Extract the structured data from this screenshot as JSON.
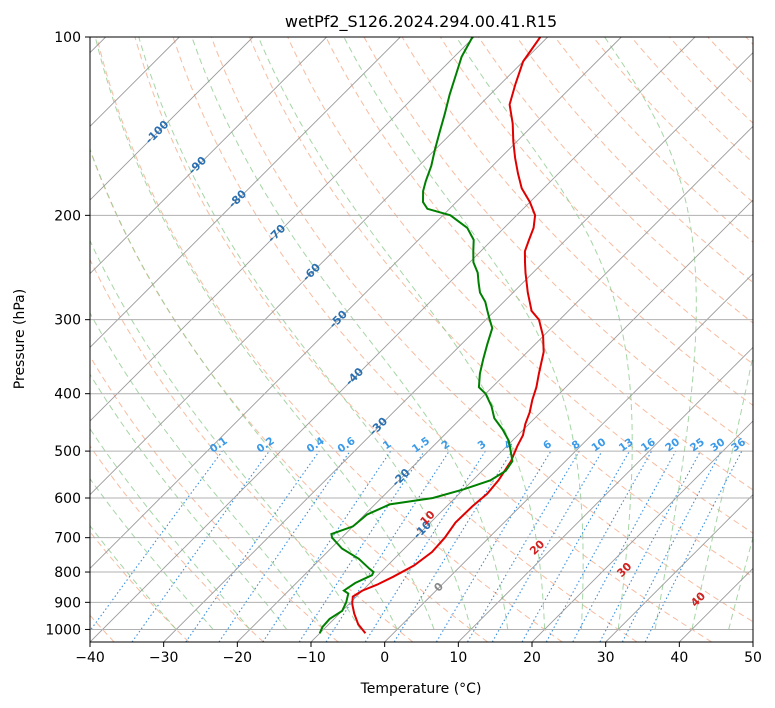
{
  "chart_data": {
    "type": "line",
    "subtype": "skew-T log-P diagram",
    "title": "wetPf2_S126.2024.294.00.41.R15",
    "xlabel": "Temperature (°C)",
    "ylabel": "Pressure (hPa)",
    "xlim": [
      -40,
      50
    ],
    "ylim": [
      1050,
      100
    ],
    "y_scale": "log",
    "x_ticks": [
      -40,
      -30,
      -20,
      -10,
      0,
      10,
      20,
      30,
      40,
      50
    ],
    "y_ticks": [
      100,
      200,
      300,
      400,
      500,
      600,
      700,
      800,
      900,
      1000
    ],
    "grid": true,
    "colors": {
      "temperature": "#e00000",
      "dewpoint": "#008000",
      "isotherm": "#9a9a9a",
      "dry_adiabat": "#f4a582",
      "moist_adiabat": "#8fca8f",
      "mixing_ratio": "#3a8fdc",
      "isotherm_label": "#2a6fb0",
      "mixing_label": "#3a9ae8",
      "moist_label": "#d02020"
    },
    "series": [
      {
        "key": "temperature",
        "points": [
          [
            -3.8,
            1015
          ],
          [
            -6,
            980
          ],
          [
            -8,
            940
          ],
          [
            -9.6,
            905
          ],
          [
            -10.5,
            880
          ],
          [
            -10,
            860
          ],
          [
            -8.8,
            840
          ],
          [
            -7.7,
            815
          ],
          [
            -6.4,
            780
          ],
          [
            -5.8,
            740
          ],
          [
            -6,
            700
          ],
          [
            -6.6,
            660
          ],
          [
            -6.5,
            620
          ],
          [
            -6.2,
            590
          ],
          [
            -6.5,
            560
          ],
          [
            -7.4,
            520
          ],
          [
            -8.6,
            490
          ],
          [
            -9.3,
            470
          ],
          [
            -10.5,
            450
          ],
          [
            -11.5,
            430
          ],
          [
            -12.8,
            410
          ],
          [
            -14,
            390
          ],
          [
            -15.5,
            370
          ],
          [
            -17.8,
            340
          ],
          [
            -20,
            320
          ],
          [
            -22.8,
            300
          ],
          [
            -25,
            290
          ],
          [
            -28,
            270
          ],
          [
            -31,
            250
          ],
          [
            -32.5,
            240
          ],
          [
            -34,
            230
          ],
          [
            -35,
            220
          ],
          [
            -36,
            210
          ],
          [
            -37.5,
            200
          ],
          [
            -40,
            190
          ],
          [
            -43,
            180
          ],
          [
            -45.5,
            170
          ],
          [
            -48,
            160
          ],
          [
            -50.5,
            150
          ],
          [
            -53,
            140
          ],
          [
            -56,
            130
          ],
          [
            -58,
            120
          ],
          [
            -60,
            110
          ],
          [
            -61,
            100
          ]
        ]
      },
      {
        "key": "dewpoint",
        "points": [
          [
            -10,
            1015
          ],
          [
            -10.5,
            990
          ],
          [
            -10.6,
            960
          ],
          [
            -10,
            930
          ],
          [
            -10.6,
            900
          ],
          [
            -11.5,
            870
          ],
          [
            -12.5,
            860
          ],
          [
            -12,
            835
          ],
          [
            -10.8,
            810
          ],
          [
            -11,
            800
          ],
          [
            -12,
            790
          ],
          [
            -14.8,
            760
          ],
          [
            -18.5,
            730
          ],
          [
            -21.3,
            700
          ],
          [
            -21.9,
            690
          ],
          [
            -20,
            670
          ],
          [
            -19.8,
            650
          ],
          [
            -19.7,
            640
          ],
          [
            -18,
            615
          ],
          [
            -13,
            600
          ],
          [
            -10,
            580
          ],
          [
            -7.6,
            560
          ],
          [
            -6.8,
            540
          ],
          [
            -7.2,
            520
          ],
          [
            -8.8,
            500
          ],
          [
            -10.5,
            480
          ],
          [
            -12.8,
            460
          ],
          [
            -15.5,
            440
          ],
          [
            -17.5,
            420
          ],
          [
            -20,
            400
          ],
          [
            -21.8,
            390
          ],
          [
            -23.5,
            370
          ],
          [
            -25,
            350
          ],
          [
            -26.5,
            330
          ],
          [
            -28,
            310
          ],
          [
            -29.5,
            300
          ],
          [
            -31,
            290
          ],
          [
            -32.5,
            280
          ],
          [
            -34.5,
            270
          ],
          [
            -36,
            260
          ],
          [
            -37.5,
            250
          ],
          [
            -39.5,
            240
          ],
          [
            -41,
            230
          ],
          [
            -42.5,
            220
          ],
          [
            -45,
            210
          ],
          [
            -49,
            200
          ],
          [
            -53,
            195
          ],
          [
            -54.5,
            190
          ],
          [
            -56,
            182
          ],
          [
            -57,
            175
          ],
          [
            -58.3,
            165
          ],
          [
            -60,
            155
          ],
          [
            -61.7,
            145
          ],
          [
            -63.5,
            135
          ],
          [
            -65.5,
            125
          ],
          [
            -67.5,
            115
          ],
          [
            -69,
            108
          ],
          [
            -70.2,
            100
          ]
        ]
      }
    ],
    "isotherm_labels": [
      "-100",
      "-90",
      "-80",
      "-70",
      "-60",
      "-50",
      "-40",
      "-30",
      "-20",
      "-10",
      "0"
    ],
    "mixing_ratio_labels": [
      "0.1",
      "0.2",
      "0.4",
      "0.6",
      "1",
      "1.5",
      "2",
      "3",
      "4",
      "6",
      "8",
      "10",
      "13",
      "16",
      "20",
      "25",
      "30",
      "36"
    ],
    "moist_adiabat_labels": [
      "10",
      "20",
      "30",
      "40"
    ]
  }
}
